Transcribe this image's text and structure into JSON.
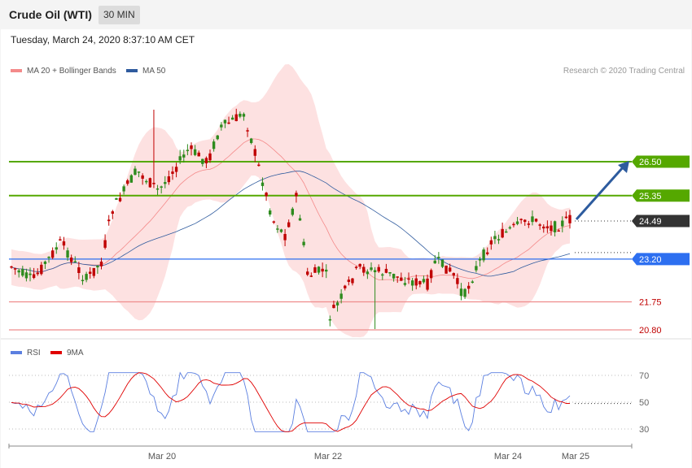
{
  "header": {
    "title": "Crude Oil (WTI)",
    "timeframe": "30 MIN",
    "datetime": "Tuesday, March 24, 2020 8:37:10 AM CET"
  },
  "colors": {
    "bollinger": "#f48a8a",
    "ma50": "#2f5b9e",
    "resistance": "#55a800",
    "support_blue": "#2d6ff0",
    "support_red": "#ef8c8c",
    "bull": "#2e8b1e",
    "bear": "#c00000",
    "rsi": "#5b7fe0",
    "rsi_ma": "#e00000"
  },
  "chart_data": [
    {
      "type": "candlestick",
      "legend": [
        {
          "name": "MA 20 + Bollinger Bands",
          "color": "#f48a8a"
        },
        {
          "name": "MA 50",
          "color": "#2f5b9e"
        }
      ],
      "copyright": "Research © 2020 Trading Central",
      "levels": [
        {
          "value": 26.5,
          "label": "26.50",
          "kind": "resistance"
        },
        {
          "value": 25.35,
          "label": "25.35",
          "kind": "resistance"
        },
        {
          "value": 24.49,
          "label": "24.49",
          "kind": "current"
        },
        {
          "value": 23.2,
          "label": "23.20",
          "kind": "pivot"
        },
        {
          "value": 21.75,
          "label": "21.75",
          "kind": "support"
        },
        {
          "value": 20.8,
          "label": "20.80",
          "kind": "support"
        }
      ],
      "x_ticks": [
        "Mar 20",
        "Mar 22",
        "Mar 24",
        "Mar 25"
      ],
      "arrow": {
        "from": 24.49,
        "to": 26.5,
        "direction": "up"
      }
    },
    {
      "type": "line",
      "legend": [
        {
          "name": "RSI",
          "color": "#5b7fe0"
        },
        {
          "name": "9MA",
          "color": "#e00000"
        }
      ],
      "y_ticks": [
        70,
        50,
        30
      ],
      "last_value": 49
    }
  ]
}
